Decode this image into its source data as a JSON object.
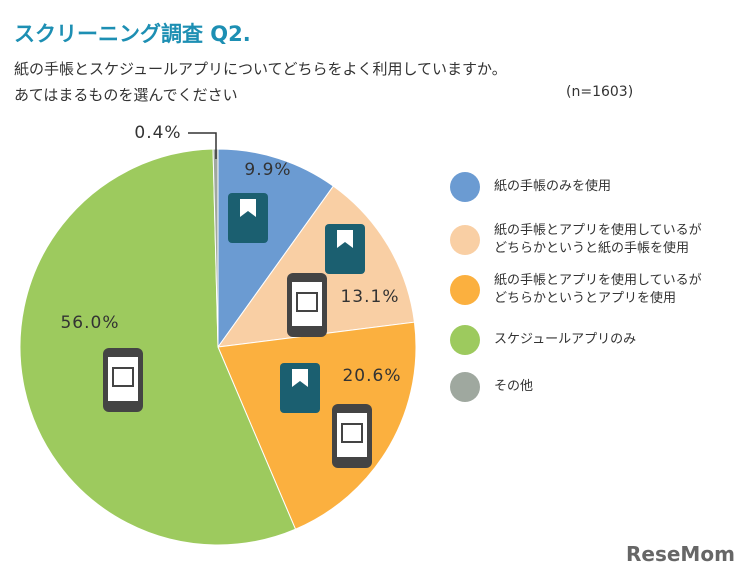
{
  "chart_data": {
    "type": "pie",
    "title": "スクリーニング調査 Q2.",
    "subtitle": "紙の手帳とスケジュールアプリについてどちらをよく利用していますか。\nあてはまるものを選んでください",
    "note": "(n=1603)",
    "watermark": "ReseMom",
    "series": [
      {
        "name": "紙の手帳のみを使用",
        "color": "#6b9bd2",
        "values": [
          9.9
        ],
        "value_labels": [
          "9.9%"
        ]
      },
      {
        "name": "紙の手帳とアプリを使用しているが\nどちらかというと紙の手帳を使用",
        "color": "#f9cfa4",
        "values": [
          13.1
        ],
        "value_labels": [
          "13.1%"
        ]
      },
      {
        "name": "紙の手帳とアプリを使用しているが\nどちらかというとアプリを使用",
        "color": "#fbb03f",
        "values": [
          20.6
        ],
        "value_labels": [
          "20.6%"
        ]
      },
      {
        "name": "スケジュールアプリのみ",
        "color": "#9dca5e",
        "values": [
          56.0
        ],
        "value_labels": [
          "56.0%"
        ]
      },
      {
        "name": "その他",
        "color": "#9fa89f",
        "values": [
          0.4
        ],
        "value_labels": [
          "0.4%"
        ]
      }
    ]
  }
}
